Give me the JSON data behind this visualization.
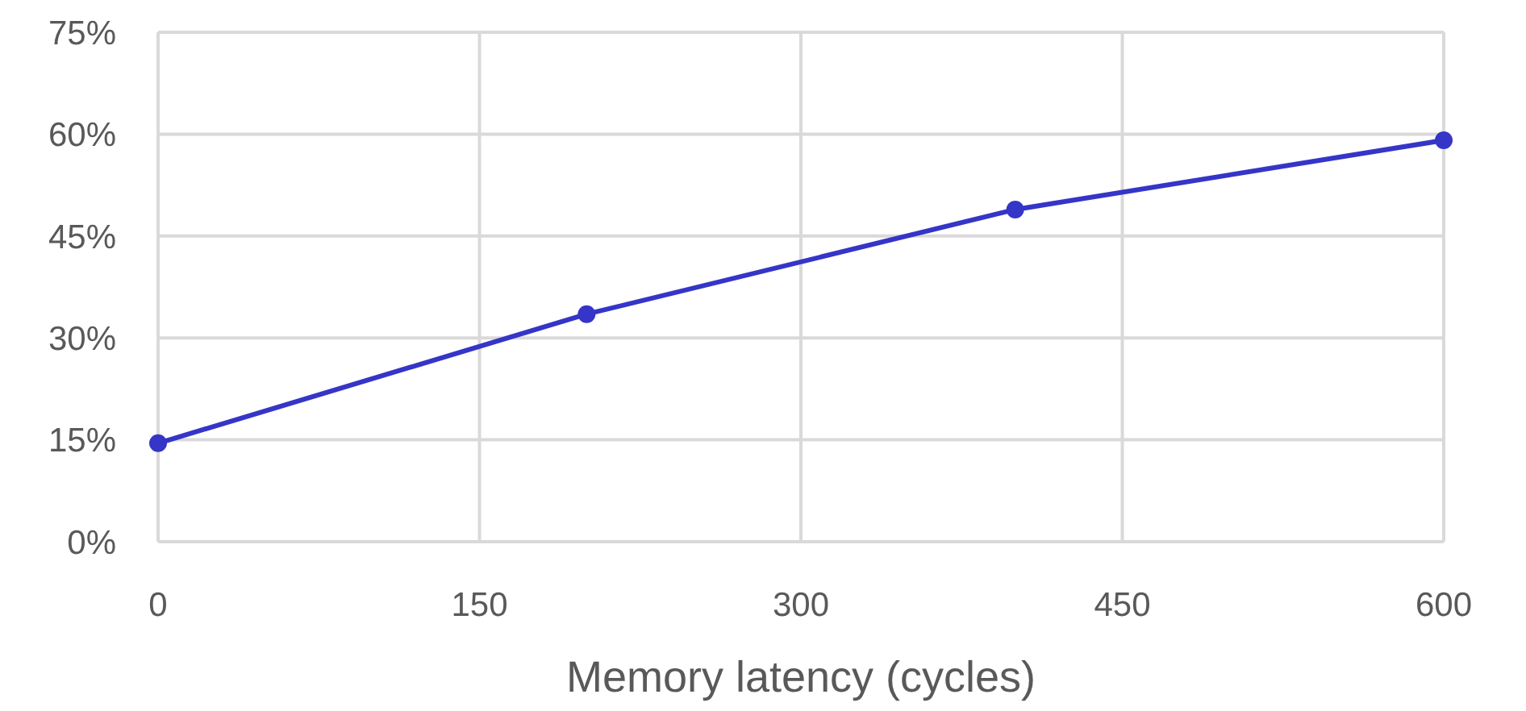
{
  "chart_data": {
    "type": "line",
    "xlabel": "Memory latency (cycles)",
    "x": [
      0,
      200,
      400,
      600
    ],
    "series": [
      {
        "color": "#3535c8",
        "values": [
          14.5,
          33.5,
          48.9,
          59.1
        ]
      }
    ],
    "xlim": [
      0,
      600
    ],
    "xticks": [
      0,
      150,
      300,
      450,
      600
    ],
    "ylim": [
      0,
      75
    ],
    "yticks": [
      {
        "value": 0,
        "label": "0%"
      },
      {
        "value": 15,
        "label": "15%"
      },
      {
        "value": 30,
        "label": "30%"
      },
      {
        "value": 45,
        "label": "45%"
      },
      {
        "value": 60,
        "label": "60%"
      },
      {
        "value": 75,
        "label": "75%"
      }
    ],
    "grid": true,
    "marker": "circle",
    "line_style": "solid"
  }
}
